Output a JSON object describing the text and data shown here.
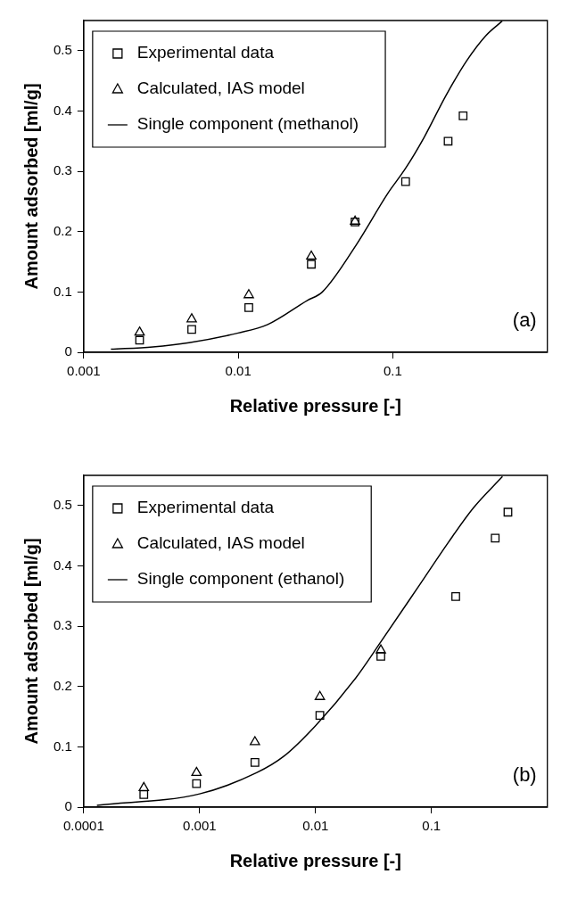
{
  "chart_data": [
    {
      "type": "scatter",
      "xlabel": "Relative pressure [-]",
      "ylabel": "Amount adsorbed [ml/g]",
      "log": "x",
      "xlim": [
        0.001,
        1
      ],
      "xticks": [
        0.001,
        0.01,
        0.1
      ],
      "ylim": [
        0,
        0.55
      ],
      "yticks": [
        0,
        0.1,
        0.2,
        0.3,
        0.4,
        0.5
      ],
      "grid": false,
      "legend": "top left",
      "annotations": [
        "(a)"
      ],
      "series": [
        {
          "name": "Experimental data",
          "type": "scatter",
          "marker": "square",
          "color": "#000000",
          "x": [
            0.0023,
            0.005,
            0.0117,
            0.0297,
            0.057,
            0.121,
            0.228,
            0.285
          ],
          "values": [
            0.02,
            0.038,
            0.074,
            0.146,
            0.216,
            0.283,
            0.35,
            0.392
          ]
        },
        {
          "name": "Calculated, IAS model",
          "type": "scatter",
          "marker": "triangle",
          "color": "#000000",
          "x": [
            0.0023,
            0.005,
            0.0117,
            0.0297,
            0.057
          ],
          "values": [
            0.033,
            0.055,
            0.095,
            0.159,
            0.217
          ]
        },
        {
          "name": "Single component (methanol)",
          "type": "line",
          "marker": "none",
          "color": "#000000",
          "x": [
            0.0015,
            0.0028,
            0.0048,
            0.01,
            0.0155,
            0.028,
            0.035,
            0.058,
            0.092,
            0.121,
            0.16,
            0.22,
            0.3,
            0.4,
            0.51
          ],
          "values": [
            0.005,
            0.009,
            0.016,
            0.032,
            0.046,
            0.086,
            0.1,
            0.178,
            0.262,
            0.305,
            0.357,
            0.425,
            0.483,
            0.525,
            0.549
          ]
        }
      ]
    },
    {
      "type": "scatter",
      "xlabel": "Relative pressure [-]",
      "ylabel": "Amount adsorbed [ml/g]",
      "log": "x",
      "xlim": [
        0.0001,
        1
      ],
      "xticks": [
        0.0001,
        0.001,
        0.01,
        0.1
      ],
      "ylim": [
        0,
        0.55
      ],
      "yticks": [
        0,
        0.1,
        0.2,
        0.3,
        0.4,
        0.5
      ],
      "grid": false,
      "legend": "top left",
      "annotations": [
        "(b)"
      ],
      "series": [
        {
          "name": "Experimental data",
          "type": "scatter",
          "marker": "square",
          "color": "#000000",
          "x": [
            0.00033,
            0.00094,
            0.003,
            0.0109,
            0.0366,
            0.162,
            0.355,
            0.457
          ],
          "values": [
            0.021,
            0.039,
            0.074,
            0.152,
            0.25,
            0.349,
            0.446,
            0.489
          ]
        },
        {
          "name": "Calculated, IAS model",
          "type": "scatter",
          "marker": "triangle",
          "color": "#000000",
          "x": [
            0.00033,
            0.00094,
            0.003,
            0.0109,
            0.0366
          ],
          "values": [
            0.032,
            0.057,
            0.108,
            0.183,
            0.26
          ]
        },
        {
          "name": "Single component (ethanol)",
          "type": "line",
          "marker": "none",
          "color": "#000000",
          "x": [
            0.00013,
            0.001,
            0.0031,
            0.0053,
            0.01,
            0.022,
            0.0366,
            0.075,
            0.14,
            0.23,
            0.41
          ],
          "values": [
            0.003,
            0.022,
            0.057,
            0.084,
            0.135,
            0.213,
            0.274,
            0.362,
            0.439,
            0.496,
            0.548
          ]
        }
      ]
    }
  ]
}
